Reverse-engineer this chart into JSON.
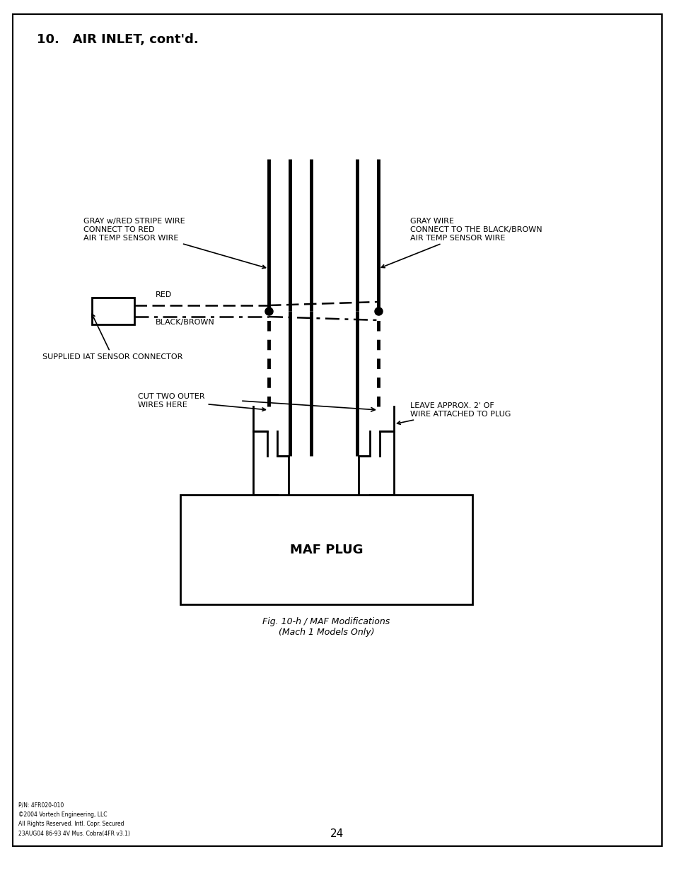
{
  "title": "10.   AIR INLET, cont'd.",
  "page_number": "24",
  "footer_text": "P/N: 4FR020-010\n©2004 Vortech Engineering, LLC\nAll Rights Reserved. Intl. Copr. Secured\n23AUG04 86-93 4V Mus. Cobra(4FR v3.1)",
  "caption": "Fig. 10-h / MAF Modifications\n(Mach 1 Models Only)",
  "maf_label": "MAF PLUG",
  "ann_gray_red": "GRAY w/RED STRIPE WIRE\nCONNECT TO RED\nAIR TEMP SENSOR WIRE",
  "ann_gray": "GRAY WIRE\nCONNECT TO THE BLACK/BROWN\nAIR TEMP SENSOR WIRE",
  "ann_red": "RED",
  "ann_bb": "BLACK/BROWN",
  "ann_iat": "SUPPLIED IAT SENSOR CONNECTOR",
  "ann_cut": "CUT TWO OUTER\nWIRES HERE",
  "ann_leave": "LEAVE APPROX. 2' OF\nWIRE ATTACHED TO PLUG",
  "bg_color": "#ffffff"
}
